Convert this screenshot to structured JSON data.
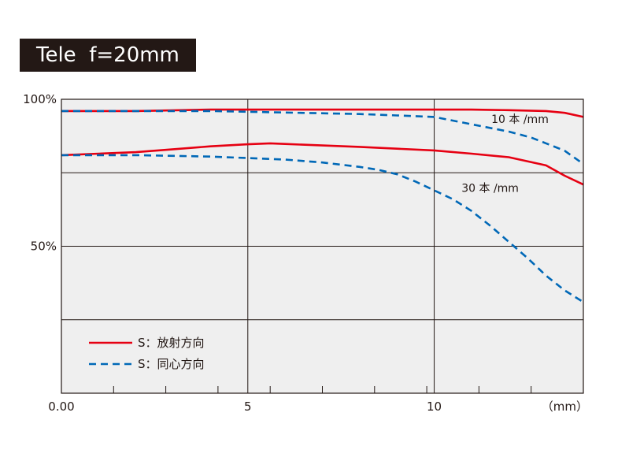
{
  "chart_data": {
    "type": "line",
    "title": "Tele  f=20mm",
    "xlabel": "",
    "ylabel": "",
    "xlim": [
      0,
      14
    ],
    "ylim": [
      0,
      100
    ],
    "x_unit_label": "（mm）",
    "x_ticks": [
      {
        "value": 0,
        "label": "0.00"
      },
      {
        "value": 5,
        "label": "5"
      },
      {
        "value": 10,
        "label": "10"
      }
    ],
    "x_minor_ticks": [
      1.4,
      2.8,
      4.2,
      5.6,
      7,
      8.4,
      9.8,
      11.2,
      12.6
    ],
    "y_ticks": [
      {
        "value": 100,
        "label": "100%"
      },
      {
        "value": 50,
        "label": "50%"
      }
    ],
    "y_gridlines": [
      100,
      75,
      50,
      25
    ],
    "x_gridlines": [
      5,
      10
    ],
    "grid": true,
    "annotations": [
      {
        "text": "10 本 /mm",
        "x": 12.3,
        "y": 92
      },
      {
        "text": "30 本 /mm",
        "x": 11.5,
        "y": 68.5
      }
    ],
    "legend": {
      "placement": "bottom-left",
      "entries": [
        {
          "label": "S：放射方向",
          "style": "solid",
          "color": "#e60012"
        },
        {
          "label": "S：同心方向",
          "style": "dashed",
          "color": "#0068b7"
        }
      ]
    },
    "series": [
      {
        "group": "10 本 /mm",
        "style": "solid",
        "color": "#e60012",
        "x": [
          0,
          2,
          4,
          6,
          8,
          10,
          11,
          12,
          13,
          13.5,
          14
        ],
        "y": [
          96,
          96,
          96.5,
          96.5,
          96.5,
          96.5,
          96.5,
          96.3,
          96,
          95.4,
          94
        ]
      },
      {
        "group": "10 本 /mm",
        "style": "dashed",
        "color": "#0068b7",
        "x": [
          0,
          2,
          4,
          6,
          8,
          9,
          10,
          11,
          12,
          12.6,
          13,
          13.5,
          14
        ],
        "y": [
          96,
          96,
          96,
          95.5,
          95,
          94.5,
          94,
          91.5,
          89,
          87,
          85,
          82.5,
          78
        ]
      },
      {
        "group": "30 本 /mm",
        "style": "solid",
        "color": "#e60012",
        "x": [
          0,
          1,
          2,
          3,
          4,
          5,
          5.6,
          6,
          7,
          8,
          9,
          10,
          11,
          12,
          13,
          13.5,
          14
        ],
        "y": [
          81,
          81.5,
          82,
          83,
          84,
          84.7,
          85,
          84.8,
          84.3,
          83.8,
          83.2,
          82.6,
          81.5,
          80.3,
          77.5,
          74,
          71
        ]
      },
      {
        "group": "30 本 /mm",
        "style": "dashed",
        "color": "#0068b7",
        "x": [
          0,
          2,
          4,
          5,
          6,
          7,
          8,
          8.5,
          9,
          9.5,
          10,
          10.5,
          11,
          11.5,
          12,
          12.5,
          13,
          13.5,
          14
        ],
        "y": [
          81,
          81,
          80.5,
          80,
          79.5,
          78.5,
          77,
          76,
          74.5,
          72,
          69,
          66,
          62,
          57,
          51.5,
          46,
          40,
          35,
          31
        ]
      }
    ]
  }
}
